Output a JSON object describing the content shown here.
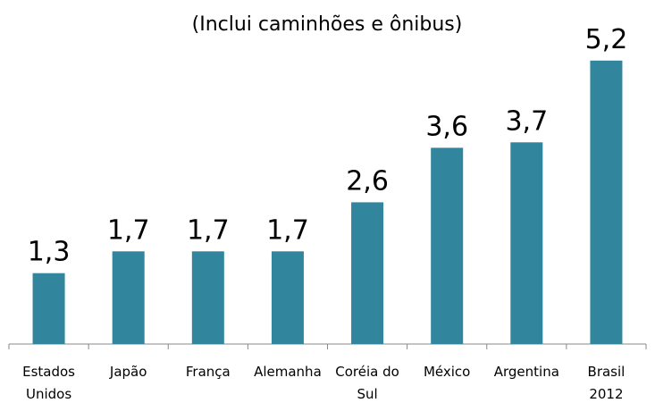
{
  "chart_data": {
    "type": "bar",
    "subtitle": "(Inclui caminhões e ônibus)",
    "categories": [
      "Estados Unidos",
      "Japão",
      "França",
      "Alemanha",
      "Coréia do Sul",
      "México",
      "Argentina",
      "Brasil 2012"
    ],
    "values": [
      1.3,
      1.7,
      1.7,
      1.7,
      2.6,
      3.6,
      3.7,
      5.2
    ],
    "value_labels": [
      "1,3",
      "1,7",
      "1,7",
      "1,7",
      "2,6",
      "3,6",
      "3,7",
      "5,2"
    ],
    "color": "#31859c",
    "ylim": [
      0,
      6
    ]
  }
}
